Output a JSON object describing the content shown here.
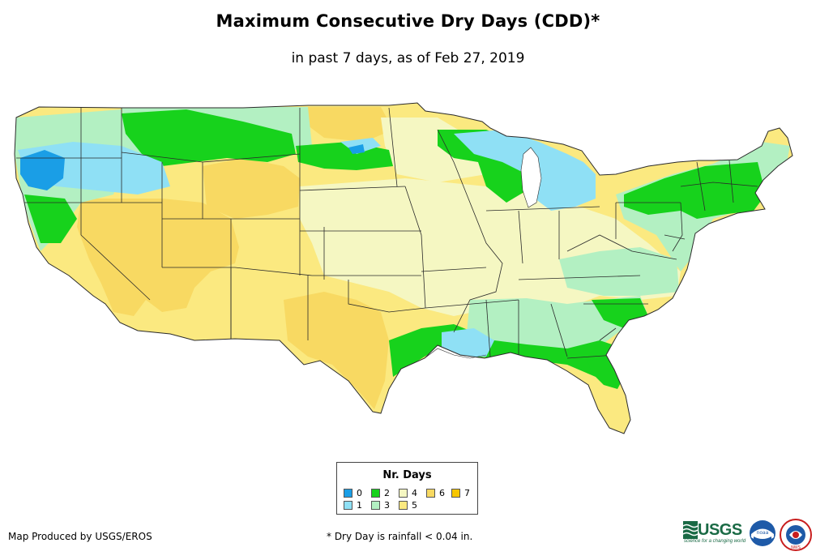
{
  "title": "Maximum Consecutive Dry Days (CDD)*",
  "subtitle": "in past 7 days, as of Feb 27, 2019",
  "legend": {
    "title": "Nr. Days",
    "items": [
      {
        "label": "0",
        "color": "#1a9ee6"
      },
      {
        "label": "1",
        "color": "#8fe0f5"
      },
      {
        "label": "2",
        "color": "#17d21c"
      },
      {
        "label": "3",
        "color": "#b3f0c2"
      },
      {
        "label": "4",
        "color": "#f5f7c2"
      },
      {
        "label": "5",
        "color": "#fbe980"
      },
      {
        "label": "6",
        "color": "#f8d962"
      },
      {
        "label": "7",
        "color": "#f7c600"
      }
    ]
  },
  "footer": {
    "producer": "Map Produced by USGS/EROS",
    "footnote": "* Dry Day is rainfall < 0.04 in."
  },
  "logos": {
    "usgs": "USGS",
    "usgs_tagline": "science for a changing world",
    "noaa": "noaa",
    "nws": "NWS"
  },
  "map": {
    "region": "Contiguous United States",
    "colors": {
      "background": "#fbe980",
      "state_border": "#2a2a2a"
    }
  }
}
